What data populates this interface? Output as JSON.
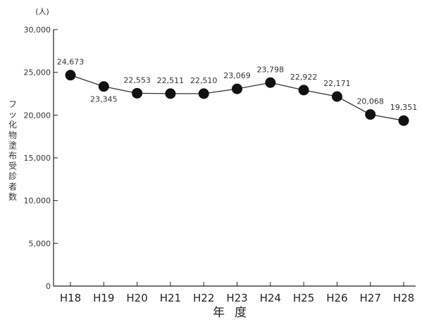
{
  "chart_data": {
    "type": "line",
    "title": "",
    "unit_label": "(人)",
    "ylabel": "フッ化物塗布受診者数",
    "xlabel": "年度",
    "categories": [
      "H18",
      "H19",
      "H20",
      "H21",
      "H22",
      "H23",
      "H24",
      "H25",
      "H26",
      "H27",
      "H28"
    ],
    "series": [
      {
        "values": [
          24673,
          23345,
          22553,
          22511,
          22510,
          23069,
          23798,
          22922,
          22171,
          20068,
          19351
        ],
        "labels": [
          "24,673",
          "23,345",
          "22,553",
          "22,511",
          "22,510",
          "23,069",
          "23,798",
          "22,922",
          "22,171",
          "20,068",
          "19,351"
        ]
      }
    ],
    "ylim": [
      0,
      30000
    ],
    "yticks": [
      0,
      5000,
      10000,
      15000,
      20000,
      25000,
      30000
    ],
    "ytick_labels": [
      "0",
      "5,000",
      "10,000",
      "15,000",
      "20,000",
      "25,000",
      "30,000"
    ],
    "grid": false,
    "legend": "none",
    "colors": {
      "line": "#333333",
      "marker": "#111111",
      "axis": "#222222"
    }
  }
}
